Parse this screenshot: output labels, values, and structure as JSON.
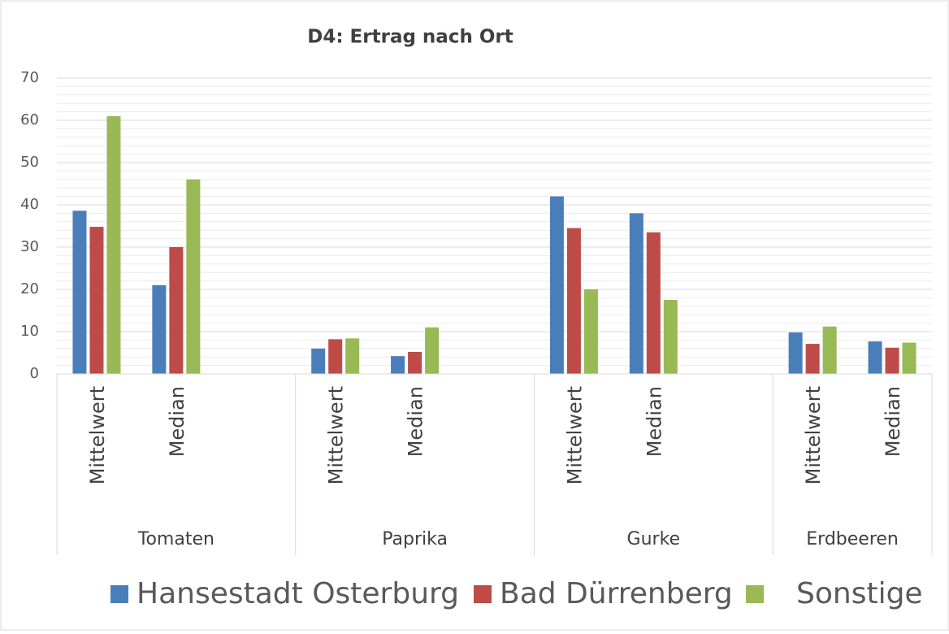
{
  "chart_data": {
    "type": "bar",
    "title": "D4: Ertrag nach Ort",
    "groups": [
      {
        "name": "Tomaten",
        "categories": [
          "Mittelwert",
          "Median",
          null
        ]
      },
      {
        "name": "Paprika",
        "categories": [
          "Mittelwert",
          "Median",
          null
        ]
      },
      {
        "name": "Gurke",
        "categories": [
          "Mittelwert",
          "Median",
          null
        ]
      },
      {
        "name": "Erdbeeren",
        "categories": [
          "Mittelwert",
          "Median"
        ]
      }
    ],
    "series": [
      {
        "name": "Hansestadt Osterburg",
        "color": "#4a7ebb",
        "values": [
          38.6,
          21,
          null,
          6,
          4.2,
          null,
          42,
          38,
          null,
          9.8,
          7.7
        ]
      },
      {
        "name": "Bad Dürrenberg",
        "color": "#be4b48",
        "values": [
          34.8,
          30,
          null,
          8.2,
          5.2,
          null,
          34.5,
          33.5,
          null,
          7.1,
          6.2
        ]
      },
      {
        "name": "Sonstige",
        "color": "#98b954",
        "values": [
          61,
          46,
          null,
          8.4,
          11,
          null,
          20,
          17.5,
          null,
          11.2,
          7.4
        ]
      }
    ],
    "ylim": [
      0,
      70
    ],
    "yticks": [
      0,
      10,
      20,
      30,
      40,
      50,
      60,
      70
    ],
    "minor_yticks": [
      2,
      4,
      6,
      8,
      12,
      14,
      16,
      18,
      22,
      24,
      26,
      28,
      32,
      34,
      36,
      38,
      42,
      44,
      46,
      48,
      52,
      54,
      56,
      58,
      62,
      64,
      66,
      68
    ],
    "grid": true,
    "legend": "bottom"
  }
}
